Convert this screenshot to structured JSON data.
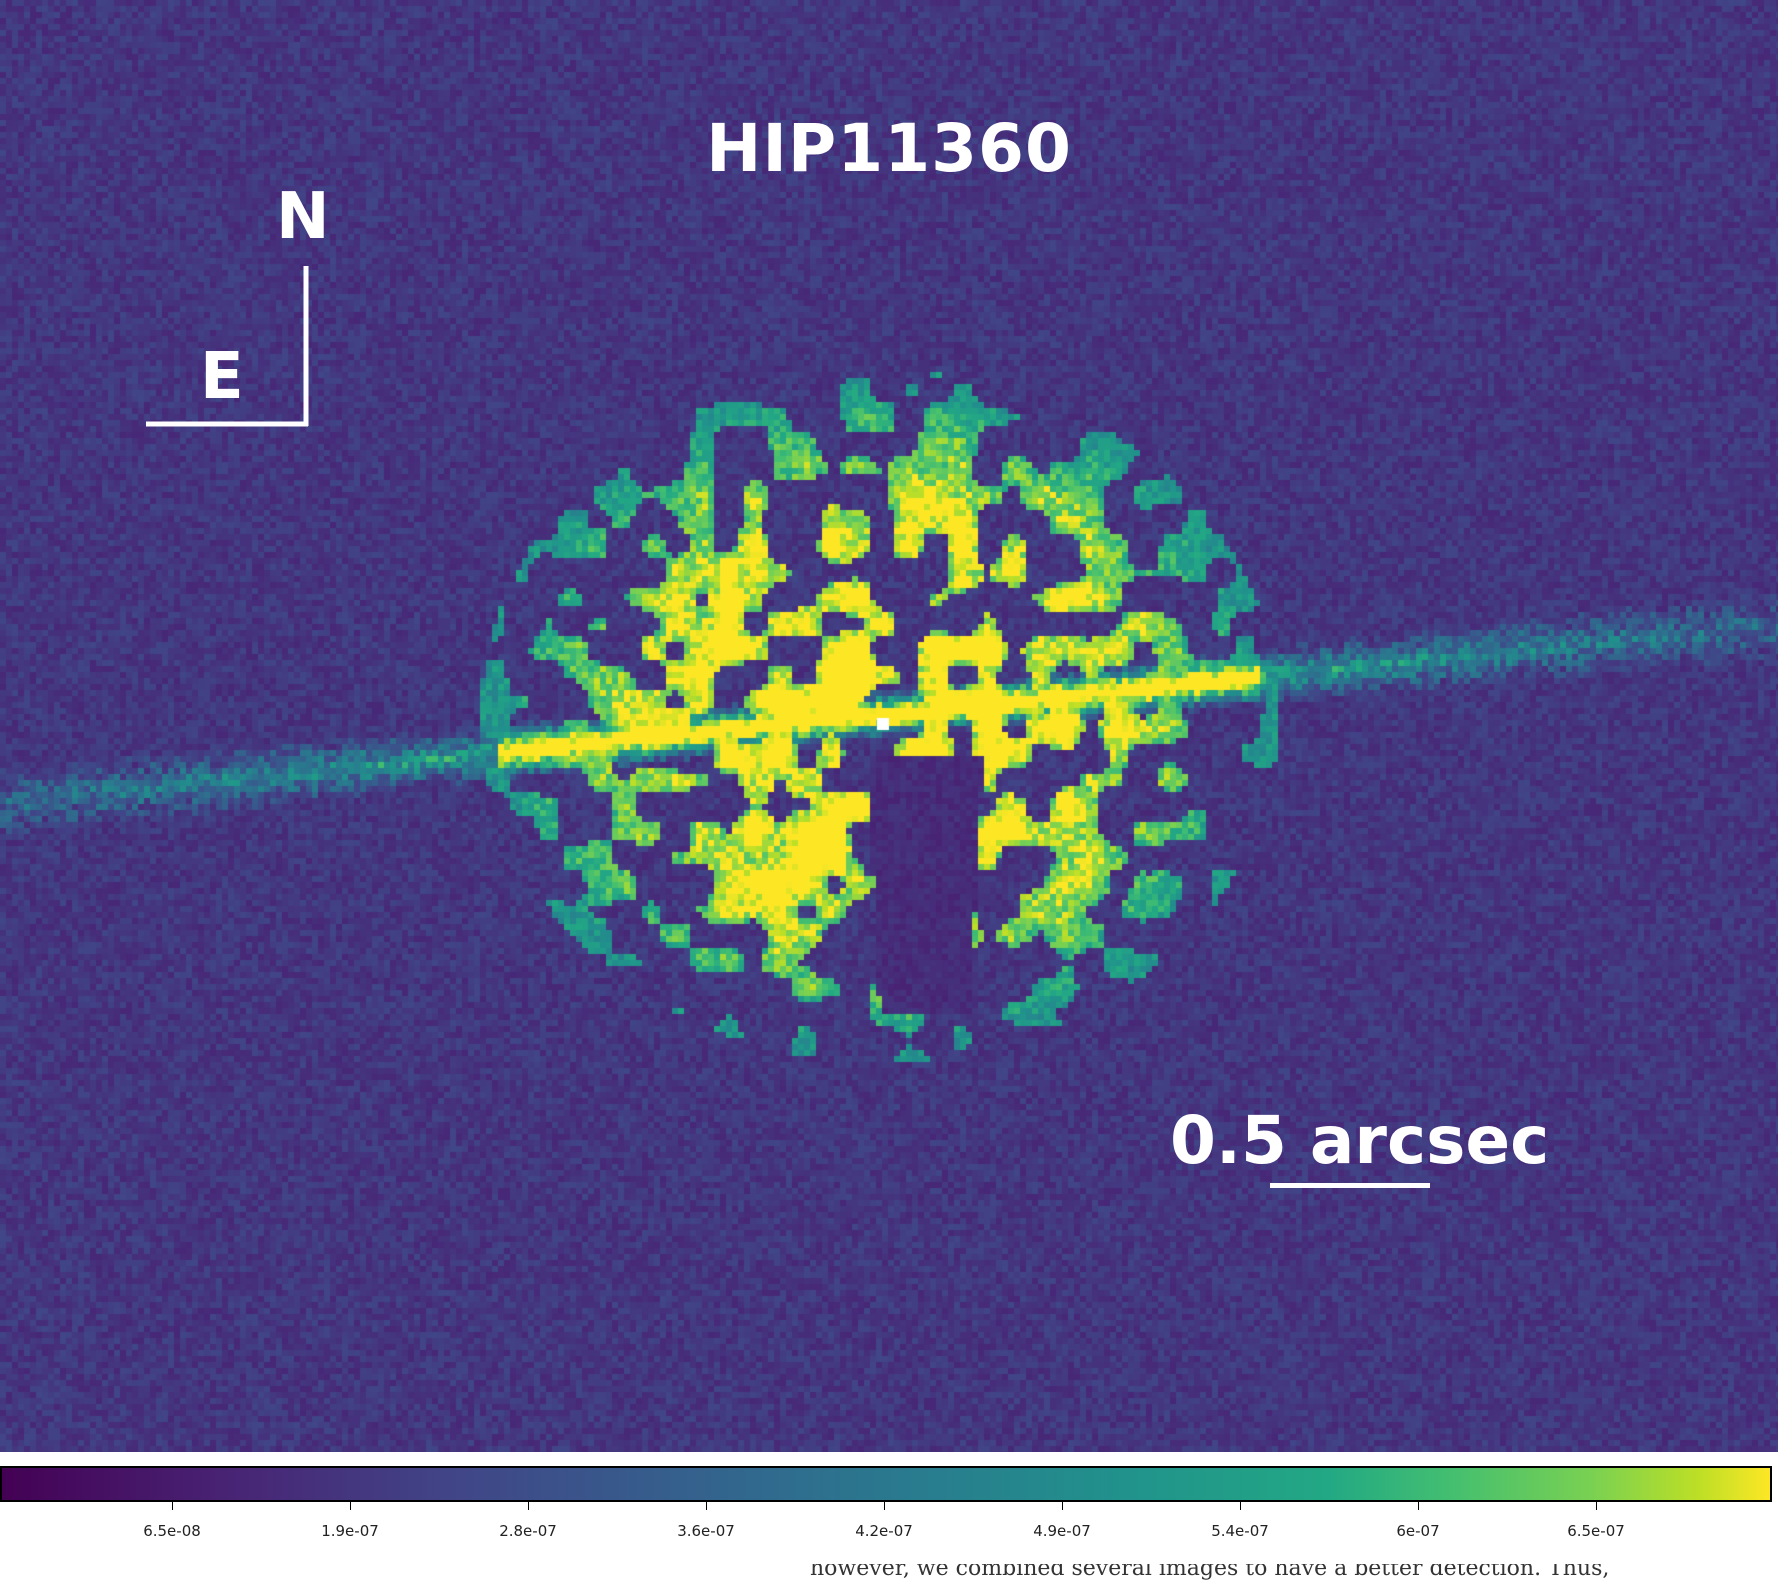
{
  "title": "HIP11360",
  "compass": {
    "north": "N",
    "east": "E"
  },
  "scale_bar": {
    "label": "0.5 arcsec"
  },
  "colorbar": {
    "colormap": "viridis",
    "tick_labels": [
      "6.5e-08",
      "1.9e-07",
      "2.8e-07",
      "3.6e-07",
      "4.2e-07",
      "4.9e-07",
      "5.4e-07",
      "6e-07",
      "6.5e-07"
    ]
  },
  "footer_text": "however, we combined several images to have a better detection. Thus,",
  "colors": {
    "background": "#3b1f6b",
    "bright": "#f7e43a",
    "overlay_text": "#ffffff"
  }
}
